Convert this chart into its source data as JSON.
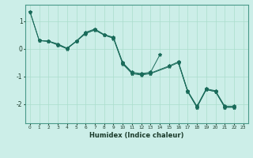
{
  "title": "",
  "xlabel": "Humidex (Indice chaleur)",
  "background_color": "#cceee8",
  "grid_color": "#aaddcc",
  "line_color": "#1a6b5a",
  "xlim": [
    -0.5,
    23.5
  ],
  "ylim": [
    -2.7,
    1.6
  ],
  "yticks": [
    -2,
    -1,
    0,
    1
  ],
  "series_x": [
    [
      0,
      1,
      2,
      3,
      4,
      5,
      6,
      7,
      8,
      9,
      10,
      11,
      12,
      13,
      15,
      16,
      17,
      18,
      19,
      20,
      21,
      22
    ],
    [
      1,
      2,
      3,
      4,
      5,
      6,
      7,
      8,
      9,
      10,
      11,
      12,
      13,
      14
    ],
    [
      0,
      1,
      2,
      3,
      4,
      5,
      6,
      7,
      8,
      9,
      10,
      11,
      12,
      13,
      15,
      16,
      17,
      18,
      19,
      20,
      21,
      22
    ],
    [
      16,
      17,
      18,
      19,
      20,
      21,
      22
    ]
  ],
  "series_y": [
    [
      1.35,
      0.3,
      0.28,
      0.15,
      0.02,
      0.28,
      0.6,
      0.72,
      0.52,
      0.42,
      -0.52,
      -0.88,
      -0.92,
      -0.88,
      -0.62,
      -0.47,
      -1.52,
      -2.08,
      -1.45,
      -1.52,
      -2.08,
      -2.08
    ],
    [
      0.3,
      0.28,
      0.18,
      0.02,
      0.28,
      0.55,
      0.7,
      0.5,
      0.4,
      -0.5,
      -0.85,
      -0.9,
      -0.85,
      -0.22
    ],
    [
      1.35,
      0.3,
      0.27,
      0.14,
      0.0,
      0.27,
      0.57,
      0.68,
      0.5,
      0.38,
      -0.55,
      -0.9,
      -0.95,
      -0.9,
      -0.65,
      -0.5,
      -1.55,
      -2.12,
      -1.48,
      -1.55,
      -2.12,
      -2.12
    ],
    [
      -0.5,
      -1.55,
      -2.12,
      -1.48,
      -1.55,
      -2.12,
      -2.12
    ]
  ]
}
